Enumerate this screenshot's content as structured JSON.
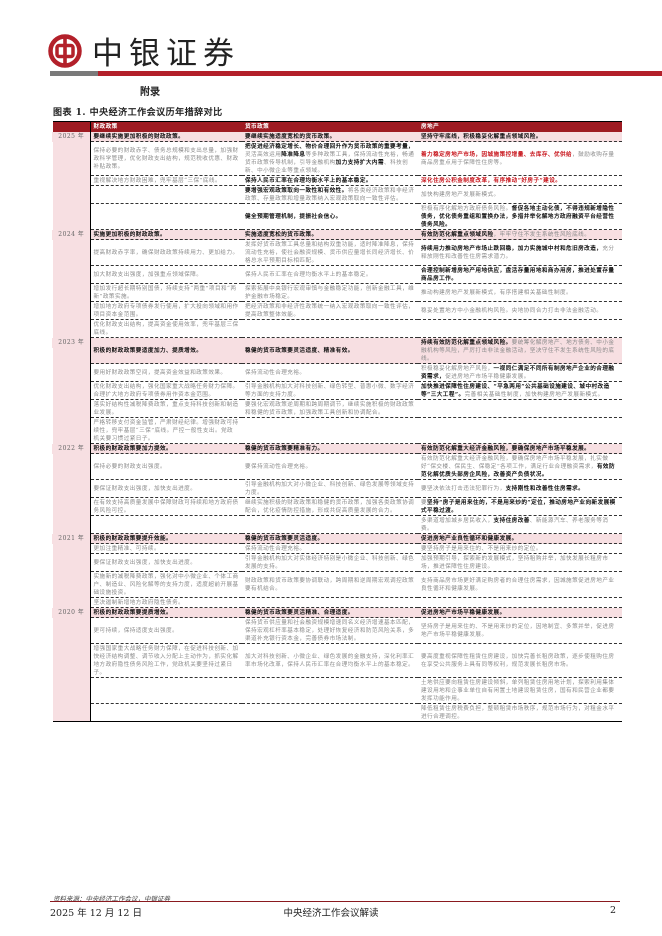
{
  "header": {
    "brand": "中银证券",
    "brand_color": "#b3202a",
    "appendix": "附录",
    "figure_title": "图表 1. 中央经济工作会议历年措辞对比"
  },
  "table": {
    "columns": [
      "",
      "财政政策",
      "货币政策",
      "房地产"
    ],
    "sections": [
      {
        "year": "2025 年",
        "rows": [
          [
            [
              {
                "t": "要继续实施更加积极的财政政策。",
                "s": "b"
              }
            ],
            [
              {
                "t": "要继续实施适度宽松的货币政策。",
                "s": "b"
              }
            ],
            [
              {
                "t": "坚持守牢底线，积极稳妥化解重点领域风险。",
                "s": "b"
              }
            ]
          ],
          [
            [
              {
                "t": "保持必要的财政赤字、债务总规模和支出总量，加强财政科学管理，优化财政支出结构，规范税收优惠、财政补贴政策。",
                "s": "n"
              }
            ],
            [
              {
                "t": "把促进经济稳定增长、物价合理回升作为货币政策的重要考量，",
                "s": "b"
              },
              {
                "t": "灵活高效运用",
                "s": "n"
              },
              {
                "t": "降准降息",
                "s": "b"
              },
              {
                "t": "等多种政策工具，保持流动性充裕，畅通货币政策传导机制，引导金融机构",
                "s": "n"
              },
              {
                "t": "加力支持扩大内需",
                "s": "b"
              },
              {
                "t": "、科技创新、中小微企业等重点领域。",
                "s": "n"
              }
            ],
            [
              {
                "t": "着力稳定房地产市场，因城施策控增量、去库存、优供给",
                "s": "r"
              },
              {
                "t": "，鼓励收购存量商品房重点用于保障性住房等。",
                "s": "n"
              }
            ]
          ],
          [
            [
              {
                "t": "重视解决地方财政困难，兜牢基层“三保”底线。",
                "s": "n"
              }
            ],
            [
              {
                "t": "保持人民币汇率在合理均衡水平上的基本稳定。",
                "s": "b"
              }
            ],
            [
              {
                "t": "深化住房公积金制度改革，有序推动“好房子”建设。",
                "s": "r"
              }
            ]
          ],
          [
            [],
            [
              {
                "t": "要增强宏观政策取向一致性和有效性。",
                "s": "b"
              },
              {
                "t": "将各类经济政策和非经济政策、存量政策和增量政策纳入宏观政策取向一致性评估。",
                "s": "n"
              }
            ],
            [
              {
                "t": "加快构建房地产发展新模式。",
                "s": "n"
              }
            ]
          ],
          [
            [],
            [
              {
                "t": "健全预期管理机制，提振社会信心。",
                "s": "b"
              }
            ],
            [
              {
                "t": "积极有序化解地方政府债务风险。",
                "s": "n"
              },
              {
                "t": "督促各地主动化债，不得违规新增隐性债务，优化债务重组和置换办法，多措并举化解地方政府融资平台经营性债务风险。",
                "s": "b"
              }
            ]
          ]
        ]
      },
      {
        "year": "2024 年",
        "rows": [
          [
            [
              {
                "t": "实施更加积极的财政政策。",
                "s": "b"
              }
            ],
            [
              {
                "t": "实施适度宽松的货币政策。",
                "s": "b"
              }
            ],
            [
              {
                "t": "有效防范化解重点领域风险",
                "s": "b"
              },
              {
                "t": "，牢牢守住不发生系统性风险底线。",
                "s": "n"
              }
            ]
          ],
          [
            [
              {
                "t": "提高财政赤字率，确保财政政策持续用力、更加给力。",
                "s": "n"
              }
            ],
            [
              {
                "t": "发挥好货币政策工具总量和结构双重功能，适时降准降息，保持流动性充裕，使社会融资规模、货币供应量增长同经济增长、价格总水平预期目标相匹配。",
                "s": "n"
              }
            ],
            [
              {
                "t": "持续用力推动房地产市场止跌回稳，加力实施城中村和危旧房改造，",
                "s": "b"
              },
              {
                "t": "充分释放刚性和改善性住房需求潜力。",
                "s": "n"
              }
            ]
          ],
          [
            [
              {
                "t": "加大财政支出强度，加强重点领域保障。",
                "s": "n"
              }
            ],
            [
              {
                "t": "保持人民币汇率在合理均衡水平上的基本稳定。",
                "s": "n"
              }
            ],
            [
              {
                "t": "合理控制新增房地产用地供应，盘活存量用地和商办用房，推进处置存量商品房工作。",
                "s": "b"
              }
            ]
          ],
          [
            [
              {
                "t": "增加发行超长期特别国债，持续支持“两重”项目和“两新”政策实施。",
                "s": "n"
              }
            ],
            [
              {
                "t": "探索拓展中央银行宏观审慎与金融稳定功能，创新金融工具，维护金融市场稳定。",
                "s": "n"
              }
            ],
            [
              {
                "t": "推动构建房地产发展新模式，有序搭建相关基础性制度。",
                "s": "n"
              }
            ]
          ],
          [
            [
              {
                "t": "增加地方政府专项债券发行使用，扩大投向领域和用作项目资本金范围。",
                "s": "n"
              }
            ],
            [
              {
                "t": "把经济政策和非经济性政策统一纳入宏观政策取向一致性评估，提高政策整体效能。",
                "s": "n"
              }
            ],
            [
              {
                "t": "稳妥处置地方中小金融机构风险。央地协同合力打击非法金融活动。",
                "s": "n"
              }
            ]
          ],
          [
            [
              {
                "t": "优化财政支出结构，提高资金使用效率，兜牢基层三保底线。",
                "s": "n"
              }
            ],
            [],
            []
          ]
        ]
      },
      {
        "year": "2023 年",
        "rows": [
          [
            [
              {
                "t": "积极的财政政策要适度加力、提质增效。",
                "s": "b"
              }
            ],
            [
              {
                "t": "稳健的货币政策要灵活适度、精准有效。",
                "s": "b"
              }
            ],
            [
              {
                "t": "持续有效防范化解重点领域风险。",
                "s": "b"
              },
              {
                "t": "要统筹化解房地产、地方债务、中小金融机构等风险，严厉打击非法金融活动，坚决守住不发生系统性风险的底线。",
                "s": "n"
              }
            ]
          ],
          [
            [
              {
                "t": "要用好财政政策空间，提高资金效益和政策效果。",
                "s": "n"
              }
            ],
            [
              {
                "t": "保持流动性合理充裕。",
                "s": "n"
              }
            ],
            [
              {
                "t": "积极稳妥化解房地产风险，",
                "s": "n"
              },
              {
                "t": "一视同仁满足不同所有制房地产企业的合理融资需求，",
                "s": "b"
              },
              {
                "t": "促进房地产市场平稳健康发展。",
                "s": "n"
              }
            ]
          ],
          [
            [
              {
                "t": "优化财政支出结构，强化国家重大战略任务财力保障。合理扩大地方政府专项债券用作资本金范围。",
                "s": "n"
              }
            ],
            [
              {
                "t": "引导金融机构加大对科技创新、绿色转型、普惠小微、数字经济等方面的支持力度。",
                "s": "n"
              }
            ],
            [
              {
                "t": "加快推进保障性住房建设、“平急两用”公共基础设施建设、城中村改造等“三大工程”。",
                "s": "b"
              },
              {
                "t": "完善相关基础性制度，加快构建房地产发展新模式。",
                "s": "n"
              }
            ]
          ],
          [
            [
              {
                "t": "落实好结构性减税降费政策，重点支持科技创新和制造业发展。",
                "s": "n"
              }
            ],
            [
              {
                "t": "要强化宏观政策逆周期和跨周期调节，继续实施积极的财政政策和稳健的货币政策，加强政策工具创新和协调配合。",
                "s": "n"
              }
            ],
            []
          ],
          [
            [
              {
                "t": "严格转移支付资金监管，严肃财经纪律。增强财政可持续性，兜牢基层“三保”底线。严控一般性支出。党政机关要习惯过紧日子。",
                "s": "n"
              }
            ],
            [],
            []
          ]
        ]
      },
      {
        "year": "2022 年",
        "rows": [
          [
            [
              {
                "t": "积极的财政政策要加力提效。",
                "s": "b"
              }
            ],
            [
              {
                "t": "稳健的货币政策要精准有力。",
                "s": "b"
              }
            ],
            [
              {
                "t": "有效防范化解重大经济金融风险，要确保房地产市场平稳发展。",
                "s": "b"
              }
            ]
          ],
          [
            [
              {
                "t": "保持必要的财政支出强度。",
                "s": "n"
              }
            ],
            [
              {
                "t": "要保持流动性合理充裕。",
                "s": "n"
              }
            ],
            [
              {
                "t": "有效防范化解重大经济金融风险，要确保房地产市场平稳发展，扎实做好“保交楼、保民生、保稳定”各项工作，满足行业合理融资需求，",
                "s": "n"
              },
              {
                "t": "有效防范化解优质头部房企风险，改善资产负债状况。",
                "s": "b"
              }
            ]
          ],
          [
            [
              {
                "t": "要保证财政支出强度，加快支出进度。",
                "s": "n"
              }
            ],
            [
              {
                "t": "引导金融机构加大对小微企业、科技创新、绿色发展等领域支持力度。",
                "s": "n"
              }
            ],
            [
              {
                "t": "要坚决依法打击违法犯罪行为，",
                "s": "n"
              },
              {
                "t": "支持刚性和改善性住房需求。",
                "s": "b"
              }
            ]
          ],
          [
            [
              {
                "t": "在有效支持高质量发展中保障财政可持续和地方政府债务风险可控。",
                "s": "n"
              }
            ],
            [
              {
                "t": "继续实施积极的财政政策和稳健的货币政策，加强各类政策协调配合，优化疫情防控措施，形成共促高质量发展的合力。",
                "s": "n"
              }
            ],
            [
              {
                "t": "要",
                "s": "n"
              },
              {
                "t": "坚持“房子是用来住的，不是用来炒的”定位，推动房地产业向新发展模式平稳过渡。",
                "s": "b"
              }
            ]
          ],
          [
            [],
            [],
            [
              {
                "t": "多渠道增加城乡居民收入，",
                "s": "n"
              },
              {
                "t": "支持住房改善",
                "s": "b"
              },
              {
                "t": "、新能源汽车、养老服务等消费。",
                "s": "n"
              }
            ]
          ]
        ]
      },
      {
        "year": "2021 年",
        "rows": [
          [
            [
              {
                "t": "积极的财政政策要提升效能。",
                "s": "b"
              }
            ],
            [
              {
                "t": "稳健的货币政策要灵活适度。",
                "s": "b"
              }
            ],
            [
              {
                "t": "促进房地产业良性循环和健康发展。",
                "s": "b"
              }
            ]
          ],
          [
            [
              {
                "t": "更加注重精准、可持续。",
                "s": "n"
              }
            ],
            [
              {
                "t": "保持流动性合理充裕。",
                "s": "n"
              }
            ],
            [
              {
                "t": "要坚持房子是用来住的、不是用来炒的定位。",
                "s": "n"
              }
            ]
          ],
          [
            [
              {
                "t": "要保证财政支出强度，加快支出进度。",
                "s": "n"
              }
            ],
            [
              {
                "t": "引导金融机构加大对实体经济特别是小微企业、科技创新、绿色发展的支持。",
                "s": "n"
              }
            ],
            [
              {
                "t": "加强预期引导，探索新的发展模式，坚持租购并举，加快发展长租房市场，推进保障性住房建设。",
                "s": "n"
              }
            ]
          ],
          [
            [
              {
                "t": "实施新的减税降费政策，强化对中小微企业、个体工商户、制造业、风险化解等的支持力度，适度超前开展基础设施投资。",
                "s": "n"
              }
            ],
            [
              {
                "t": "财政政策和货币政策要协调联动，跨周期和逆周期宏观调控政策要有机结合。",
                "s": "n"
              }
            ],
            [
              {
                "t": "支持商品房市场更好满足购房者的合理住房需求，因城施策促进房地产业良性循环和健康发展。",
                "s": "n"
              }
            ]
          ],
          [
            [
              {
                "t": "坚决遏制新增地方政府隐性债务。",
                "s": "n"
              }
            ],
            [],
            []
          ]
        ]
      },
      {
        "year": "2020 年",
        "rows": [
          [
            [
              {
                "t": "积极的财政政策要提质增效。",
                "s": "b"
              }
            ],
            [
              {
                "t": "稳健的货币政策要灵活精准、合理适度。",
                "s": "b"
              }
            ],
            [
              {
                "t": "促进房地产市场平稳健康发展。",
                "s": "b"
              }
            ]
          ],
          [
            [
              {
                "t": "更可持续，保持适度支出强度。",
                "s": "n"
              }
            ],
            [
              {
                "t": "保持货币供应量和社会融资规模增速同名义经济增速基本匹配，保持宏观杠杆率基本稳定，处理好恢复经济和防范风险关系，多渠道补充银行资本金，完善债券市场法制。",
                "s": "n"
              }
            ],
            [
              {
                "t": "坚持房子是用来住的、不是用来炒的定位，因地制宜、多策并举，促进房地产市场平稳健康发展。",
                "s": "n"
              }
            ]
          ],
          [
            [
              {
                "t": "增强国家重大战略任务财力保障，在促进科技创新、加快经济结构调整、调节收入分配上主动作为，抓实化解地方政府隐性债务风险工作，党政机关要坚持过紧日子。",
                "s": "n"
              }
            ],
            [
              {
                "t": "加大对科技创新、小微企业、绿色发展的金融支持，深化利率汇率市场化改革，保持人民币汇率在合理均衡水平上的基本稳定。",
                "s": "n"
              }
            ],
            [
              {
                "t": "要高度重视保障性租赁住房建设，加快完善长租房政策，逐步使租购住房在享受公共服务上具有同等权利，规范发展长租房市场。",
                "s": "n"
              }
            ]
          ],
          [
            [],
            [],
            [
              {
                "t": "土地供应要向租赁住房建设倾斜，单列租赁住房用地计划，探索利用集体建设用地和企事业单位自有闲置土地建设租赁住房，国有和民营企业都要发挥功能作用。",
                "s": "n"
              }
            ]
          ],
          [
            [],
            [],
            [
              {
                "t": "降低租赁住房税费负担，整顿租赁市场秩序，规范市场行为，对租金水平进行合理调控。",
                "s": "n"
              }
            ]
          ]
        ]
      }
    ]
  },
  "source": "资料来源：中央经济工作会议，中银证券",
  "footer": {
    "date": "2025 年 12 月 12 日",
    "title": "中央经济工作会议解读",
    "page": "2"
  }
}
